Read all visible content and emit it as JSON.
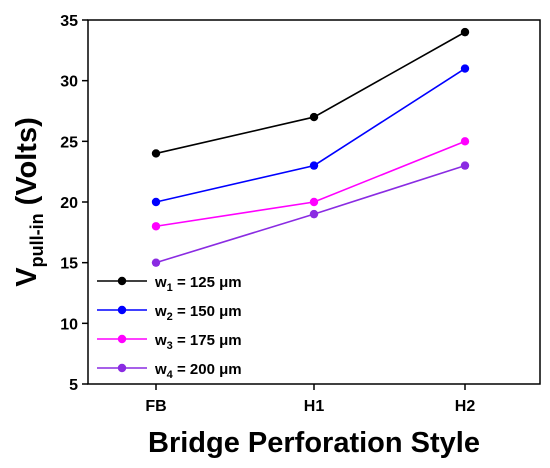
{
  "chart_data": {
    "type": "line",
    "xlabel": "Bridge Perforation Style",
    "ylabel": {
      "main": "V",
      "subscript": "pull-in",
      "rest": " (Volts)"
    },
    "categories": [
      "FB",
      "H1",
      "H2"
    ],
    "ylim": [
      5,
      35
    ],
    "yticks": [
      5,
      10,
      15,
      20,
      25,
      30,
      35
    ],
    "grid": false,
    "legend_position": "bottom-left",
    "series": [
      {
        "name": "w1 = 125 μm",
        "label_main": "w",
        "label_sub": "1",
        "label_rest": " = 125 μm",
        "color": "#000000",
        "values": [
          24,
          27,
          34
        ]
      },
      {
        "name": "w2 = 150 μm",
        "label_main": "w",
        "label_sub": "2",
        "label_rest": " = 150 μm",
        "color": "#0000ff",
        "values": [
          20,
          23,
          31
        ]
      },
      {
        "name": "w3 = 175 μm",
        "label_main": "w",
        "label_sub": "3",
        "label_rest": " = 175 μm",
        "color": "#ff00ff",
        "values": [
          18,
          20,
          25
        ]
      },
      {
        "name": "w4 = 200 μm",
        "label_main": "w",
        "label_sub": "4",
        "label_rest": " = 200 μm",
        "color": "#8a2be2",
        "values": [
          15,
          19,
          23
        ]
      }
    ]
  }
}
